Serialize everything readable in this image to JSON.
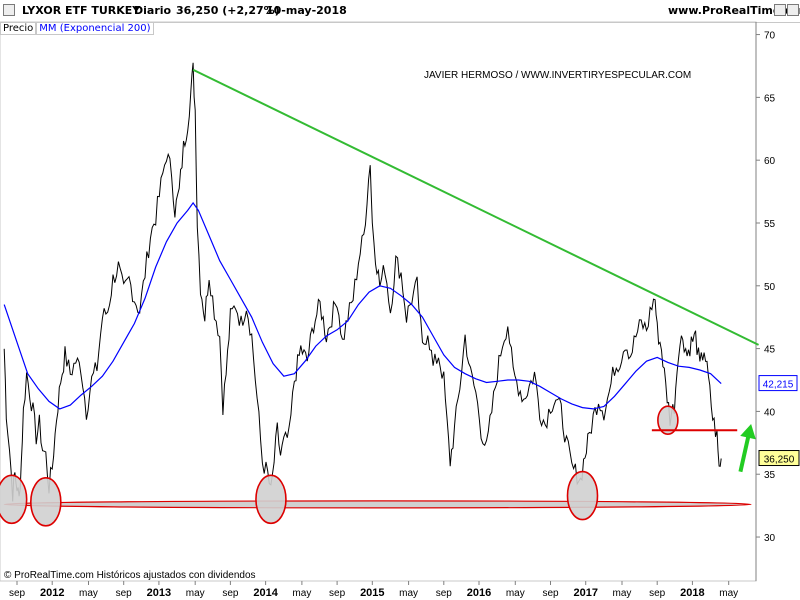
{
  "header": {
    "instrument": "LYXOR ETF TURKEY",
    "period": "Diario",
    "price_change": "36,250 (+2,27%)",
    "date": "10-may-2018",
    "site": "www.ProRealTime.com"
  },
  "legend": {
    "price": "Precio",
    "ma": "MM (Exponencial 200)"
  },
  "watermark": "JAVIER HERMOSO / WWW.INVERTIRYESPECULAR.COM",
  "footer": "© ProRealTime.com  Históricos ajustados con dividendos",
  "colors": {
    "price": "#000000",
    "ma": "#0000ff",
    "trendline": "#33bb33",
    "support": "#dd0000",
    "arrow": "#22cc22",
    "circle_fill": "#d0d0d0",
    "grid": "#c8c8c8"
  },
  "chart_data": {
    "type": "line",
    "ylim": [
      26.5,
      71
    ],
    "y_ticks": [
      "70",
      "65",
      "60",
      "55",
      "50",
      "45",
      "40",
      "35",
      "30"
    ],
    "x_ticks": [
      {
        "label": "sep",
        "t": 0.0
      },
      {
        "label": "2012",
        "t": 0.33
      },
      {
        "label": "may",
        "t": 0.67
      },
      {
        "label": "sep",
        "t": 1.0
      },
      {
        "label": "2013",
        "t": 1.33
      },
      {
        "label": "may",
        "t": 1.67
      },
      {
        "label": "sep",
        "t": 2.0
      },
      {
        "label": "2014",
        "t": 2.33
      },
      {
        "label": "may",
        "t": 2.67
      },
      {
        "label": "sep",
        "t": 3.0
      },
      {
        "label": "2015",
        "t": 3.33
      },
      {
        "label": "may",
        "t": 3.67
      },
      {
        "label": "sep",
        "t": 4.0
      },
      {
        "label": "2016",
        "t": 4.33
      },
      {
        "label": "may",
        "t": 4.67
      },
      {
        "label": "sep",
        "t": 5.0
      },
      {
        "label": "2017",
        "t": 5.33
      },
      {
        "label": "may",
        "t": 5.67
      },
      {
        "label": "sep",
        "t": 6.0
      },
      {
        "label": "2018",
        "t": 6.33
      },
      {
        "label": "may",
        "t": 6.67
      }
    ],
    "series": [
      {
        "name": "Precio",
        "points": [
          [
            -0.12,
            45.0
          ],
          [
            -0.1,
            40.0
          ],
          [
            -0.07,
            37.0
          ],
          [
            -0.04,
            33.5
          ],
          [
            -0.02,
            35.0
          ],
          [
            0.0,
            34.0
          ],
          [
            0.02,
            33.0
          ],
          [
            0.04,
            36.0
          ],
          [
            0.06,
            40.0
          ],
          [
            0.09,
            43.0
          ],
          [
            0.12,
            41.5
          ],
          [
            0.15,
            40.0
          ],
          [
            0.18,
            38.0
          ],
          [
            0.21,
            39.0
          ],
          [
            0.24,
            37.0
          ],
          [
            0.27,
            36.5
          ],
          [
            0.3,
            34.0
          ],
          [
            0.33,
            35.5
          ],
          [
            0.37,
            39.5
          ],
          [
            0.41,
            42.5
          ],
          [
            0.45,
            44.5
          ],
          [
            0.5,
            43.0
          ],
          [
            0.55,
            44.0
          ],
          [
            0.6,
            43.5
          ],
          [
            0.65,
            40.0
          ],
          [
            0.7,
            42.5
          ],
          [
            0.75,
            43.5
          ],
          [
            0.8,
            47.5
          ],
          [
            0.85,
            48.0
          ],
          [
            0.9,
            50.5
          ],
          [
            0.95,
            51.5
          ],
          [
            1.0,
            49.5
          ],
          [
            1.05,
            50.5
          ],
          [
            1.1,
            49.0
          ],
          [
            1.15,
            48.0
          ],
          [
            1.2,
            51.0
          ],
          [
            1.25,
            54.0
          ],
          [
            1.3,
            55.5
          ],
          [
            1.35,
            58.0
          ],
          [
            1.4,
            60.5
          ],
          [
            1.45,
            59.0
          ],
          [
            1.48,
            56.0
          ],
          [
            1.52,
            57.5
          ],
          [
            1.56,
            61.0
          ],
          [
            1.6,
            63.0
          ],
          [
            1.63,
            65.5
          ],
          [
            1.65,
            67.2
          ],
          [
            1.67,
            64.0
          ],
          [
            1.69,
            55.0
          ],
          [
            1.72,
            50.0
          ],
          [
            1.76,
            47.5
          ],
          [
            1.8,
            51.0
          ],
          [
            1.85,
            48.0
          ],
          [
            1.9,
            46.0
          ],
          [
            1.93,
            40.5
          ],
          [
            1.96,
            43.0
          ],
          [
            2.0,
            47.5
          ],
          [
            2.05,
            48.5
          ],
          [
            2.1,
            47.0
          ],
          [
            2.15,
            48.5
          ],
          [
            2.2,
            46.0
          ],
          [
            2.25,
            41.0
          ],
          [
            2.3,
            36.0
          ],
          [
            2.35,
            35.0
          ],
          [
            2.38,
            33.5
          ],
          [
            2.41,
            36.0
          ],
          [
            2.44,
            38.5
          ],
          [
            2.47,
            36.5
          ],
          [
            2.5,
            37.5
          ],
          [
            2.55,
            38.0
          ],
          [
            2.6,
            42.5
          ],
          [
            2.66,
            45.0
          ],
          [
            2.72,
            44.0
          ],
          [
            2.78,
            47.0
          ],
          [
            2.84,
            48.5
          ],
          [
            2.9,
            46.0
          ],
          [
            2.95,
            47.5
          ],
          [
            3.0,
            49.0
          ],
          [
            3.05,
            45.5
          ],
          [
            3.1,
            47.5
          ],
          [
            3.15,
            49.0
          ],
          [
            3.2,
            52.0
          ],
          [
            3.25,
            54.0
          ],
          [
            3.28,
            57.0
          ],
          [
            3.31,
            60.0
          ],
          [
            3.33,
            55.0
          ],
          [
            3.36,
            52.5
          ],
          [
            3.4,
            50.0
          ],
          [
            3.45,
            51.5
          ],
          [
            3.5,
            48.0
          ],
          [
            3.55,
            52.0
          ],
          [
            3.6,
            51.0
          ],
          [
            3.65,
            47.5
          ],
          [
            3.7,
            49.0
          ],
          [
            3.75,
            50.0
          ],
          [
            3.8,
            45.0
          ],
          [
            3.85,
            46.5
          ],
          [
            3.9,
            43.5
          ],
          [
            3.95,
            44.5
          ],
          [
            4.0,
            42.5
          ],
          [
            4.03,
            39.0
          ],
          [
            4.06,
            36.0
          ],
          [
            4.1,
            38.5
          ],
          [
            4.15,
            42.0
          ],
          [
            4.2,
            46.0
          ],
          [
            4.25,
            43.0
          ],
          [
            4.3,
            41.5
          ],
          [
            4.35,
            38.5
          ],
          [
            4.4,
            37.0
          ],
          [
            4.45,
            40.0
          ],
          [
            4.5,
            43.0
          ],
          [
            4.55,
            45.5
          ],
          [
            4.6,
            47.0
          ],
          [
            4.65,
            43.0
          ],
          [
            4.7,
            42.0
          ],
          [
            4.75,
            41.0
          ],
          [
            4.8,
            42.0
          ],
          [
            4.85,
            43.0
          ],
          [
            4.9,
            40.0
          ],
          [
            4.95,
            39.0
          ],
          [
            5.0,
            40.5
          ],
          [
            5.05,
            41.0
          ],
          [
            5.1,
            40.0
          ],
          [
            5.15,
            37.5
          ],
          [
            5.2,
            35.5
          ],
          [
            5.25,
            35.0
          ],
          [
            5.28,
            34.5
          ],
          [
            5.31,
            36.0
          ],
          [
            5.35,
            37.5
          ],
          [
            5.4,
            39.5
          ],
          [
            5.45,
            41.0
          ],
          [
            5.5,
            40.0
          ],
          [
            5.55,
            41.5
          ],
          [
            5.6,
            43.5
          ],
          [
            5.65,
            44.0
          ],
          [
            5.7,
            45.5
          ],
          [
            5.75,
            44.5
          ],
          [
            5.8,
            46.0
          ],
          [
            5.85,
            47.0
          ],
          [
            5.9,
            46.5
          ],
          [
            5.95,
            48.5
          ],
          [
            5.98,
            49.0
          ],
          [
            6.0,
            46.5
          ],
          [
            6.04,
            45.0
          ],
          [
            6.08,
            42.0
          ],
          [
            6.12,
            39.5
          ],
          [
            6.16,
            40.5
          ],
          [
            6.2,
            45.0
          ],
          [
            6.24,
            46.0
          ],
          [
            6.28,
            44.5
          ],
          [
            6.32,
            45.5
          ],
          [
            6.36,
            46.0
          ],
          [
            6.4,
            43.5
          ],
          [
            6.44,
            45.0
          ],
          [
            6.48,
            42.5
          ],
          [
            6.52,
            39.5
          ],
          [
            6.56,
            38.0
          ],
          [
            6.58,
            35.5
          ],
          [
            6.6,
            36.25
          ]
        ]
      },
      {
        "name": "MM (Exponencial 200)",
        "points": [
          [
            -0.12,
            48.5
          ],
          [
            0.0,
            45.5
          ],
          [
            0.1,
            43.0
          ],
          [
            0.2,
            41.8
          ],
          [
            0.3,
            40.8
          ],
          [
            0.4,
            40.2
          ],
          [
            0.5,
            40.5
          ],
          [
            0.6,
            41.3
          ],
          [
            0.7,
            42.0
          ],
          [
            0.8,
            42.8
          ],
          [
            0.9,
            44.0
          ],
          [
            1.0,
            45.5
          ],
          [
            1.1,
            47.0
          ],
          [
            1.2,
            49.0
          ],
          [
            1.3,
            51.5
          ],
          [
            1.4,
            53.5
          ],
          [
            1.5,
            55.0
          ],
          [
            1.6,
            56.0
          ],
          [
            1.65,
            56.6
          ],
          [
            1.7,
            56.0
          ],
          [
            1.8,
            54.0
          ],
          [
            1.9,
            52.0
          ],
          [
            2.0,
            50.5
          ],
          [
            2.1,
            49.0
          ],
          [
            2.2,
            47.5
          ],
          [
            2.3,
            45.5
          ],
          [
            2.4,
            43.8
          ],
          [
            2.5,
            42.8
          ],
          [
            2.6,
            43.0
          ],
          [
            2.7,
            44.0
          ],
          [
            2.8,
            45.2
          ],
          [
            2.9,
            46.0
          ],
          [
            3.0,
            46.5
          ],
          [
            3.1,
            47.2
          ],
          [
            3.2,
            48.5
          ],
          [
            3.3,
            49.5
          ],
          [
            3.4,
            50.0
          ],
          [
            3.5,
            49.8
          ],
          [
            3.6,
            49.2
          ],
          [
            3.7,
            48.5
          ],
          [
            3.8,
            47.5
          ],
          [
            3.9,
            46.0
          ],
          [
            4.0,
            44.5
          ],
          [
            4.1,
            43.5
          ],
          [
            4.2,
            43.0
          ],
          [
            4.3,
            42.6
          ],
          [
            4.4,
            42.3
          ],
          [
            4.5,
            42.4
          ],
          [
            4.6,
            42.5
          ],
          [
            4.7,
            42.5
          ],
          [
            4.8,
            42.4
          ],
          [
            4.9,
            42.0
          ],
          [
            5.0,
            41.5
          ],
          [
            5.1,
            41.0
          ],
          [
            5.2,
            40.6
          ],
          [
            5.3,
            40.3
          ],
          [
            5.4,
            40.2
          ],
          [
            5.5,
            40.4
          ],
          [
            5.6,
            41.2
          ],
          [
            5.7,
            42.2
          ],
          [
            5.8,
            43.2
          ],
          [
            5.9,
            44.0
          ],
          [
            6.0,
            44.3
          ],
          [
            6.1,
            43.9
          ],
          [
            6.2,
            43.6
          ],
          [
            6.3,
            43.5
          ],
          [
            6.4,
            43.3
          ],
          [
            6.5,
            43.0
          ],
          [
            6.6,
            42.215
          ]
        ]
      }
    ],
    "last_values": {
      "ma": "42,215",
      "price": "36,250"
    },
    "annotations": {
      "trendline": [
        [
          1.65,
          67.2
        ],
        [
          6.95,
          45.3
        ]
      ],
      "support_band": {
        "t": [
          -0.12,
          6.88
        ],
        "y": 32.6
      },
      "resistance_line": {
        "t": [
          5.95,
          6.75
        ],
        "y": 38.5
      },
      "circles": [
        {
          "t": -0.05,
          "y": 33.0
        },
        {
          "t": 0.27,
          "y": 32.8
        },
        {
          "t": 2.38,
          "y": 33.0
        },
        {
          "t": 5.3,
          "y": 33.3
        },
        {
          "t": 6.1,
          "y": 39.3
        }
      ],
      "arrow": {
        "from": [
          6.78,
          35.2
        ],
        "to": [
          6.88,
          39.0
        ]
      }
    }
  }
}
